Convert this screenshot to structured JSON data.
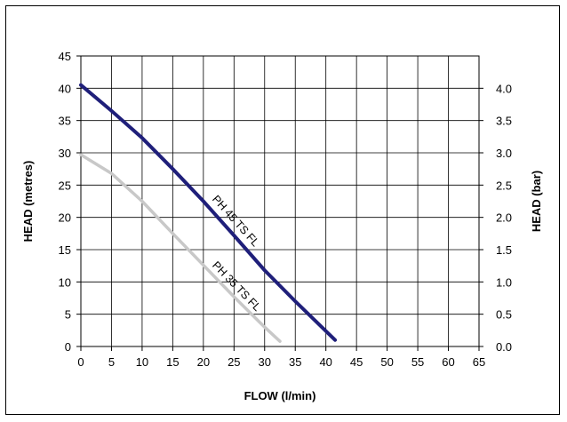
{
  "chart_data": {
    "type": "line",
    "xlabel": "FLOW (l/min)",
    "ylabel": "HEAD (metres)",
    "y2label": "HEAD (bar)",
    "xlim": [
      0,
      65
    ],
    "ylim": [
      0,
      45
    ],
    "y2lim": [
      0,
      4.5
    ],
    "x_ticks": [
      "0",
      "5",
      "10",
      "15",
      "20",
      "25",
      "30",
      "35",
      "40",
      "45",
      "50",
      "55",
      "60",
      "65"
    ],
    "y_ticks": [
      "0",
      "5",
      "10",
      "15",
      "20",
      "25",
      "30",
      "35",
      "40",
      "45"
    ],
    "y2_ticks": [
      "0.0",
      "0.5",
      "1.0",
      "1.5",
      "2.0",
      "2.5",
      "3.0",
      "3.5",
      "4.0"
    ],
    "grid": true,
    "series": [
      {
        "name": "PH 45 TS FL",
        "color": "#1f1f7a",
        "x": [
          0,
          5,
          10,
          15,
          20,
          25,
          30,
          35,
          41.5
        ],
        "y": [
          40.5,
          36.5,
          32.3,
          27.5,
          22.5,
          17.2,
          11.8,
          7,
          1
        ]
      },
      {
        "name": "PH 35 TS FL",
        "color": "#c8c8c8",
        "x": [
          0,
          5,
          10,
          15,
          20,
          25,
          30,
          32.5
        ],
        "y": [
          29.7,
          26.8,
          22.5,
          17.5,
          12.6,
          7.7,
          3,
          0.8
        ]
      }
    ]
  }
}
